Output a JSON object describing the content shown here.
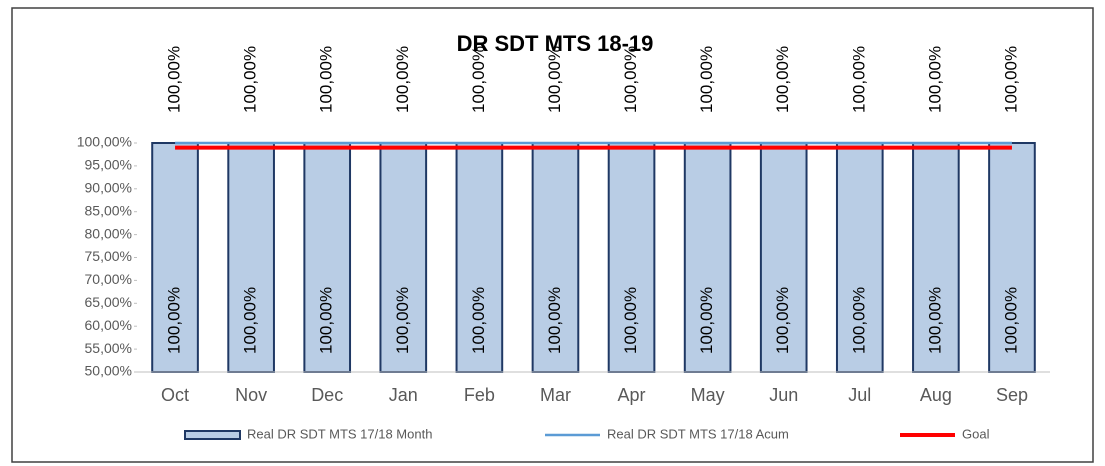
{
  "chart_data": {
    "type": "bar",
    "title": "DR SDT MTS 18-19",
    "categories": [
      "Oct",
      "Nov",
      "Dec",
      "Jan",
      "Feb",
      "Mar",
      "Apr",
      "May",
      "Jun",
      "Jul",
      "Aug",
      "Sep"
    ],
    "series": [
      {
        "name": "Real DR SDT MTS 17/18 Month",
        "type": "bar",
        "color": "#b9cde5",
        "stroke": "#1f3864",
        "values": [
          100,
          100,
          100,
          100,
          100,
          100,
          100,
          100,
          100,
          100,
          100,
          100
        ],
        "value_labels": [
          "100,00%",
          "100,00%",
          "100,00%",
          "100,00%",
          "100,00%",
          "100,00%",
          "100,00%",
          "100,00%",
          "100,00%",
          "100,00%",
          "100,00%",
          "100,00%"
        ]
      },
      {
        "name": "Real DR SDT MTS 17/18 Acum",
        "type": "line",
        "color": "#5b9bd5",
        "values": [
          100,
          100,
          100,
          100,
          100,
          100,
          100,
          100,
          100,
          100,
          100,
          100
        ],
        "value_labels": [
          "100,00%",
          "100,00%",
          "100,00%",
          "100,00%",
          "100,00%",
          "100,00%",
          "100,00%",
          "100,00%",
          "100,00%",
          "100,00%",
          "100,00%",
          "100,00%"
        ]
      },
      {
        "name": "Goal",
        "type": "line",
        "color": "#ff0000",
        "values": [
          99,
          99,
          99,
          99,
          99,
          99,
          99,
          99,
          99,
          99,
          99,
          99
        ]
      }
    ],
    "ylim": [
      50,
      100
    ],
    "yticks": [
      {
        "value": 50,
        "label": "50,00%"
      },
      {
        "value": 55,
        "label": "55,00%"
      },
      {
        "value": 60,
        "label": "60,00%"
      },
      {
        "value": 65,
        "label": "65,00%"
      },
      {
        "value": 70,
        "label": "70,00%"
      },
      {
        "value": 75,
        "label": "75,00%"
      },
      {
        "value": 80,
        "label": "80,00%"
      },
      {
        "value": 85,
        "label": "85,00%"
      },
      {
        "value": 90,
        "label": "90,00%"
      },
      {
        "value": 95,
        "label": "95,00%"
      },
      {
        "value": 100,
        "label": "100,00%"
      }
    ],
    "legend": "bottom"
  }
}
